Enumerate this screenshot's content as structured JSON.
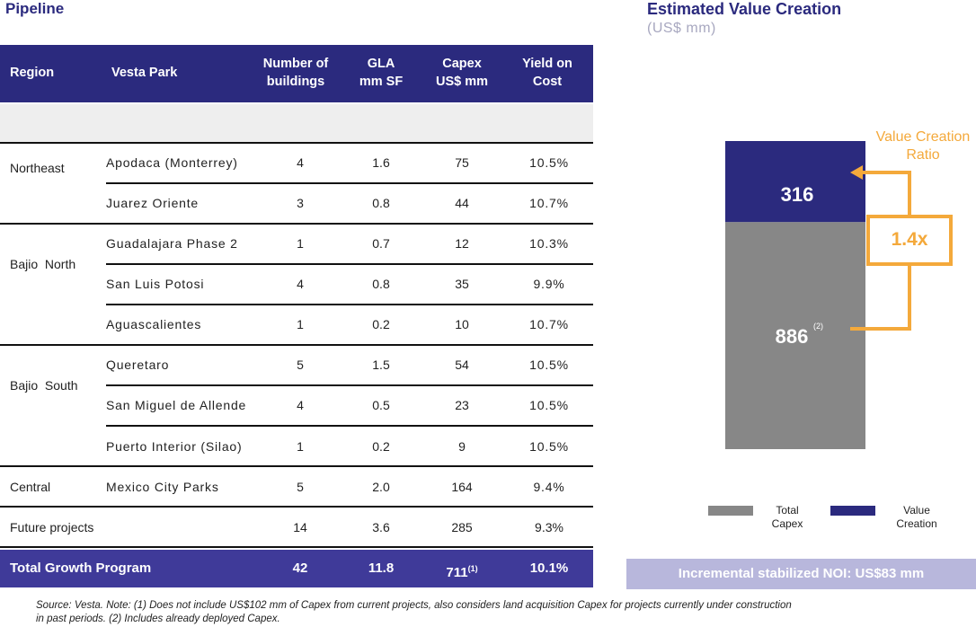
{
  "pipeline": {
    "title": "Pipeline",
    "columns": [
      {
        "label": "Region"
      },
      {
        "label": "Vesta Park"
      },
      {
        "label": "Number of\nbuildings"
      },
      {
        "label": "GLA\nmm SF"
      },
      {
        "label": "Capex\nUS$ mm"
      },
      {
        "label": "Yield on\nCost"
      }
    ],
    "regions": [
      "Northeast",
      "Bajio  North",
      "Bajio  South",
      "Central",
      "Future projects"
    ],
    "rows": [
      {
        "park": "Apodaca (Monterrey)",
        "buildings": "4",
        "gla": "1.6",
        "capex": "75",
        "yield": "10.5%"
      },
      {
        "park": "Juarez Oriente",
        "buildings": "3",
        "gla": "0.8",
        "capex": "44",
        "yield": "10.7%"
      },
      {
        "park": "Guadalajara Phase 2",
        "buildings": "1",
        "gla": "0.7",
        "capex": "12",
        "yield": "10.3%"
      },
      {
        "park": "San Luis Potosi",
        "buildings": "4",
        "gla": "0.8",
        "capex": "35",
        "yield": "9.9%"
      },
      {
        "park": "Aguascalientes",
        "buildings": "1",
        "gla": "0.2",
        "capex": "10",
        "yield": "10.7%"
      },
      {
        "park": "Queretaro",
        "buildings": "5",
        "gla": "1.5",
        "capex": "54",
        "yield": "10.5%"
      },
      {
        "park": "San Miguel de Allende",
        "buildings": "4",
        "gla": "0.5",
        "capex": "23",
        "yield": "10.5%"
      },
      {
        "park": "Puerto Interior (Silao)",
        "buildings": "1",
        "gla": "0.2",
        "capex": "9",
        "yield": "10.5%"
      },
      {
        "park": "Mexico City Parks",
        "buildings": "5",
        "gla": "2.0",
        "capex": "164",
        "yield": "9.4%"
      },
      {
        "park": "",
        "buildings": "14",
        "gla": "3.6",
        "capex": "285",
        "yield": "9.3%"
      }
    ],
    "total": {
      "label": "Total Growth Program",
      "buildings": "42",
      "gla": "11.8",
      "capex": "711",
      "capex_note": "(1)",
      "yield": "10.1%"
    }
  },
  "value_creation": {
    "title": "Estimated Value Creation",
    "subtitle": "(US$ mm)",
    "ratio_label": "Value Creation\nRatio",
    "ratio_value": "1.4x",
    "banner": "Incremental stabilized NOI: US$83 mm",
    "colors": {
      "capex": "#878787",
      "value": "#2b2a7e",
      "accent": "#f4a93b"
    }
  },
  "chart_data": {
    "type": "bar",
    "stacked": true,
    "categories": [
      ""
    ],
    "series": [
      {
        "name": "Total\nCapex",
        "values": [
          886
        ],
        "label": "886",
        "label_note": "(2)"
      },
      {
        "name": "Value\nCreation",
        "values": [
          316
        ],
        "label": "316"
      }
    ],
    "legend_position": "bottom",
    "title": "Estimated Value Creation",
    "ylabel": "",
    "xlabel": ""
  },
  "footnote": {
    "line1": "Source: Vesta. Note: (1) Does not include US$102 mm of Capex from current projects, also considers land acquisition Capex for projects currently under construction",
    "line2": "in past periods. (2) Includes already deployed Capex."
  }
}
